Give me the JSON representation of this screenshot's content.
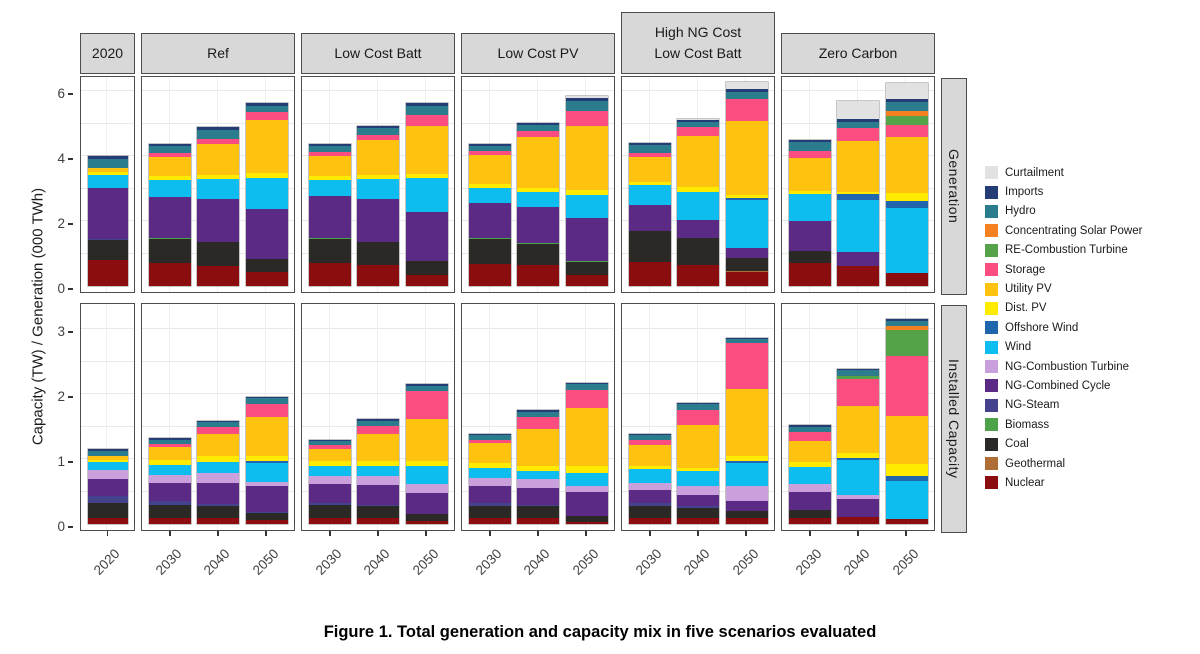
{
  "figure": {
    "caption": "Figure 1. Total generation and capacity mix in five scenarios evaluated"
  },
  "y_axis": {
    "label": "Capacity (TW) / Generation (000 TWh)",
    "top_ticks": [
      0,
      2,
      4,
      6
    ],
    "bottom_ticks": [
      0,
      1,
      2,
      3
    ]
  },
  "chart_data": {
    "type": "bar",
    "stacked": true,
    "facet_rows": [
      "Generation",
      "Installed Capacity"
    ],
    "units": {
      "Generation": "000 TWh",
      "Installed Capacity": "TW"
    },
    "y_domains": {
      "Generation": [
        0,
        6.5
      ],
      "Installed Capacity": [
        0,
        3.4
      ]
    },
    "gridline_step": {
      "Generation": 1,
      "Installed Capacity": 0.5
    },
    "facet_columns": [
      {
        "id": "y2020",
        "label": "2020",
        "years": [
          "2020"
        ]
      },
      {
        "id": "ref",
        "label": "Ref",
        "years": [
          "2030",
          "2040",
          "2050"
        ]
      },
      {
        "id": "lcb",
        "label": "Low Cost Batt",
        "years": [
          "2030",
          "2040",
          "2050"
        ]
      },
      {
        "id": "lcpv",
        "label": "Low Cost PV",
        "years": [
          "2030",
          "2040",
          "2050"
        ]
      },
      {
        "id": "hng",
        "label": "High NG Cost\nLow Cost Batt",
        "years": [
          "2030",
          "2040",
          "2050"
        ]
      },
      {
        "id": "zc",
        "label": "Zero Carbon",
        "years": [
          "2030",
          "2040",
          "2050"
        ]
      }
    ],
    "legend": [
      {
        "label": "Curtailment",
        "color": "#E2E2E2"
      },
      {
        "label": "Imports",
        "color": "#253D77"
      },
      {
        "label": "Hydro",
        "color": "#2B7D8D"
      },
      {
        "label": "Concentrating Solar Power",
        "color": "#F58020"
      },
      {
        "label": "RE-Combustion Turbine",
        "color": "#55A348"
      },
      {
        "label": "Storage",
        "color": "#FB4D7F"
      },
      {
        "label": "Utility PV",
        "color": "#FFC20E"
      },
      {
        "label": "Dist. PV",
        "color": "#FFEB00"
      },
      {
        "label": "Offshore Wind",
        "color": "#1F66AD"
      },
      {
        "label": "Wind",
        "color": "#0DBDF0"
      },
      {
        "label": "NG-Combustion Turbine",
        "color": "#C9A0DC"
      },
      {
        "label": "NG-Combined Cycle",
        "color": "#5B2A84"
      },
      {
        "label": "NG-Steam",
        "color": "#44418D"
      },
      {
        "label": "Biomass",
        "color": "#4DA24A"
      },
      {
        "label": "Coal",
        "color": "#2B2926"
      },
      {
        "label": "Geothermal",
        "color": "#AF6E33"
      },
      {
        "label": "Nuclear",
        "color": "#8B0D10"
      }
    ],
    "stack_order_bottom_to_top": [
      "Nuclear",
      "Geothermal",
      "Coal",
      "Biomass",
      "NG-Steam",
      "NG-Combined Cycle",
      "NG-Combustion Turbine",
      "Wind",
      "Offshore Wind",
      "Dist. PV",
      "Utility PV",
      "Storage",
      "RE-Combustion Turbine",
      "Concentrating Solar Power",
      "Hydro",
      "Imports",
      "Curtailment"
    ],
    "values": {
      "Generation": {
        "y2020": {
          "2020": {
            "Nuclear": 0.79,
            "Coal": 0.64,
            "NG-Steam": 0.03,
            "NG-Combined Cycle": 1.55,
            "Wind": 0.41,
            "Dist. PV": 0.1,
            "Utility PV": 0.1,
            "Hydro": 0.29,
            "Imports": 0.1
          }
        },
        "ref": {
          "2030": {
            "Nuclear": 0.72,
            "Coal": 0.72,
            "Biomass": 0.03,
            "NG-Combined Cycle": 1.28,
            "Wind": 0.52,
            "Dist. PV": 0.13,
            "Utility PV": 0.58,
            "Storage": 0.1,
            "Hydro": 0.22,
            "Imports": 0.07
          },
          "2040": {
            "Nuclear": 0.62,
            "Coal": 0.73,
            "Biomass": 0.02,
            "NG-Combined Cycle": 1.31,
            "Wind": 0.62,
            "Dist. PV": 0.13,
            "Utility PV": 0.95,
            "Storage": 0.15,
            "Hydro": 0.27,
            "Imports": 0.08
          },
          "2050": {
            "Nuclear": 0.43,
            "Coal": 0.39,
            "Biomass": 0.02,
            "NG-Combined Cycle": 1.53,
            "Wind": 0.96,
            "Dist. PV": 0.14,
            "Utility PV": 1.63,
            "Storage": 0.27,
            "Hydro": 0.17,
            "Imports": 0.08
          }
        },
        "lcb": {
          "2030": {
            "Nuclear": 0.7,
            "Coal": 0.76,
            "Biomass": 0.02,
            "NG-Combined Cycle": 1.29,
            "Wind": 0.48,
            "Dist. PV": 0.13,
            "Utility PV": 0.63,
            "Storage": 0.12,
            "Hydro": 0.17,
            "Imports": 0.06
          },
          "2040": {
            "Nuclear": 0.66,
            "Coal": 0.69,
            "Biomass": 0.02,
            "NG-Combined Cycle": 1.31,
            "Wind": 0.62,
            "Dist. PV": 0.13,
            "Utility PV": 1.06,
            "Storage": 0.17,
            "Hydro": 0.21,
            "Imports": 0.07
          },
          "2050": {
            "Nuclear": 0.35,
            "Coal": 0.41,
            "Biomass": 0.02,
            "NG-Combined Cycle": 1.51,
            "Wind": 1.04,
            "Dist. PV": 0.13,
            "Utility PV": 1.48,
            "Storage": 0.31,
            "Hydro": 0.28,
            "Imports": 0.09
          }
        },
        "lcpv": {
          "2030": {
            "Nuclear": 0.69,
            "Coal": 0.77,
            "Biomass": 0.02,
            "NG-Combined Cycle": 1.08,
            "Wind": 0.45,
            "Dist. PV": 0.12,
            "Utility PV": 0.9,
            "Storage": 0.12,
            "Hydro": 0.17,
            "Imports": 0.06
          },
          "2040": {
            "Nuclear": 0.66,
            "Coal": 0.64,
            "Biomass": 0.02,
            "NG-Combined Cycle": 1.12,
            "Wind": 0.46,
            "Dist. PV": 0.12,
            "Utility PV": 1.57,
            "Storage": 0.17,
            "Hydro": 0.19,
            "Imports": 0.07
          },
          "2050": {
            "Nuclear": 0.33,
            "Coal": 0.41,
            "Biomass": 0.02,
            "NG-Combined Cycle": 1.34,
            "Wind": 0.7,
            "Dist. PV": 0.15,
            "Utility PV": 1.97,
            "Storage": 0.46,
            "Hydro": 0.3,
            "Imports": 0.12,
            "Curtailment": 0.04
          }
        },
        "hng": {
          "2030": {
            "Nuclear": 0.73,
            "Coal": 0.95,
            "Biomass": 0.02,
            "NG-Combined Cycle": 0.79,
            "Wind": 0.62,
            "Dist. PV": 0.1,
            "Utility PV": 0.75,
            "Storage": 0.12,
            "Hydro": 0.26,
            "Imports": 0.07
          },
          "2040": {
            "Nuclear": 0.65,
            "Coal": 0.82,
            "Biomass": 0.02,
            "NG-Combined Cycle": 0.55,
            "Wind": 0.86,
            "Dist. PV": 0.14,
            "Utility PV": 1.58,
            "Storage": 0.27,
            "Hydro": 0.17,
            "Imports": 0.05,
            "Curtailment": 0.03
          },
          "2050": {
            "Nuclear": 0.44,
            "Geothermal": 0.02,
            "Coal": 0.4,
            "NG-Combined Cycle": 0.3,
            "Wind": 1.49,
            "Offshore Wind": 0.06,
            "Dist. PV": 0.08,
            "Utility PV": 2.3,
            "Storage": 0.68,
            "Hydro": 0.2,
            "Imports": 0.1,
            "Curtailment": 0.22
          }
        },
        "zc": {
          "2030": {
            "Nuclear": 0.72,
            "Coal": 0.35,
            "Biomass": 0.02,
            "NG-Combined Cycle": 0.92,
            "Wind": 0.81,
            "Dist. PV": 0.11,
            "Utility PV": 1.02,
            "Storage": 0.22,
            "Hydro": 0.26,
            "Imports": 0.07
          },
          "2040": {
            "Nuclear": 0.62,
            "NG-Combined Cycle": 0.44,
            "Wind": 1.6,
            "Offshore Wind": 0.16,
            "Dist. PV": 0.08,
            "Utility PV": 1.56,
            "Storage": 0.39,
            "Hydro": 0.2,
            "Imports": 0.09,
            "Curtailment": 0.55
          },
          "2050": {
            "Nuclear": 0.39,
            "Wind": 2.0,
            "Offshore Wind": 0.23,
            "Dist. PV": 0.25,
            "Utility PV": 1.71,
            "Storage": 0.38,
            "RE-Combustion Turbine": 0.26,
            "Concentrating Solar Power": 0.18,
            "Hydro": 0.25,
            "Imports": 0.1,
            "Curtailment": 0.5
          }
        }
      },
      "Installed Capacity": {
        "y2020": {
          "2020": {
            "Nuclear": 0.1,
            "Coal": 0.23,
            "NG-Steam": 0.1,
            "NG-Combined Cycle": 0.26,
            "NG-Combustion Turbine": 0.14,
            "Wind": 0.12,
            "Dist. PV": 0.04,
            "Utility PV": 0.05,
            "Storage": 0.01,
            "Hydro": 0.08,
            "Imports": 0.02
          }
        },
        "ref": {
          "2030": {
            "Nuclear": 0.1,
            "Coal": 0.2,
            "NG-Steam": 0.05,
            "NG-Combined Cycle": 0.28,
            "NG-Combustion Turbine": 0.13,
            "Wind": 0.15,
            "Dist. PV": 0.07,
            "Utility PV": 0.2,
            "Storage": 0.05,
            "Hydro": 0.07,
            "Imports": 0.02
          },
          "2040": {
            "Nuclear": 0.09,
            "Coal": 0.18,
            "NG-Steam": 0.04,
            "NG-Combined Cycle": 0.32,
            "NG-Combustion Turbine": 0.15,
            "Wind": 0.18,
            "Dist. PV": 0.08,
            "Utility PV": 0.35,
            "Storage": 0.1,
            "Hydro": 0.08,
            "Imports": 0.02
          },
          "2050": {
            "Nuclear": 0.06,
            "Coal": 0.11,
            "NG-Steam": 0.02,
            "NG-Combined Cycle": 0.39,
            "NG-Combustion Turbine": 0.06,
            "Wind": 0.3,
            "Offshore Wind": 0.03,
            "Dist. PV": 0.08,
            "Utility PV": 0.59,
            "Storage": 0.21,
            "Hydro": 0.09,
            "Imports": 0.02
          }
        },
        "lcb": {
          "2030": {
            "Nuclear": 0.1,
            "Coal": 0.19,
            "NG-Steam": 0.04,
            "NG-Combined Cycle": 0.29,
            "NG-Combustion Turbine": 0.12,
            "Wind": 0.15,
            "Dist. PV": 0.08,
            "Utility PV": 0.19,
            "Storage": 0.05,
            "Hydro": 0.07,
            "Imports": 0.02
          },
          "2040": {
            "Nuclear": 0.1,
            "Coal": 0.17,
            "NG-Steam": 0.03,
            "NG-Combined Cycle": 0.3,
            "NG-Combustion Turbine": 0.14,
            "Wind": 0.15,
            "Dist. PV": 0.08,
            "Utility PV": 0.41,
            "Storage": 0.13,
            "Hydro": 0.08,
            "Imports": 0.02
          },
          "2050": {
            "Nuclear": 0.04,
            "Coal": 0.11,
            "NG-Combined Cycle": 0.33,
            "NG-Combustion Turbine": 0.13,
            "Wind": 0.28,
            "Dist. PV": 0.08,
            "Utility PV": 0.64,
            "Storage": 0.44,
            "Hydro": 0.08,
            "Imports": 0.02
          }
        },
        "lcpv": {
          "2030": {
            "Nuclear": 0.1,
            "Coal": 0.18,
            "NG-Steam": 0.05,
            "NG-Combined Cycle": 0.25,
            "NG-Combustion Turbine": 0.13,
            "Wind": 0.15,
            "Dist. PV": 0.08,
            "Utility PV": 0.3,
            "Storage": 0.06,
            "Hydro": 0.07,
            "Imports": 0.02
          },
          "2040": {
            "Nuclear": 0.1,
            "Coal": 0.17,
            "NG-Steam": 0.03,
            "NG-Combined Cycle": 0.26,
            "NG-Combustion Turbine": 0.13,
            "Wind": 0.13,
            "Dist. PV": 0.08,
            "Utility PV": 0.57,
            "Storage": 0.18,
            "Hydro": 0.08,
            "Imports": 0.02
          },
          "2050": {
            "Nuclear": 0.03,
            "Coal": 0.1,
            "NG-Combined Cycle": 0.36,
            "NG-Combustion Turbine": 0.09,
            "Wind": 0.21,
            "Dist. PV": 0.1,
            "Utility PV": 0.9,
            "Storage": 0.28,
            "Hydro": 0.08,
            "Imports": 0.02
          }
        },
        "hng": {
          "2030": {
            "Nuclear": 0.1,
            "Coal": 0.18,
            "NG-Steam": 0.05,
            "NG-Combined Cycle": 0.19,
            "NG-Combustion Turbine": 0.11,
            "Wind": 0.21,
            "Dist. PV": 0.05,
            "Utility PV": 0.32,
            "Storage": 0.08,
            "Hydro": 0.08,
            "Imports": 0.02
          },
          "2040": {
            "Nuclear": 0.1,
            "Coal": 0.14,
            "NG-Steam": 0.03,
            "NG-Combined Cycle": 0.18,
            "NG-Combustion Turbine": 0.13,
            "Wind": 0.23,
            "Dist. PV": 0.06,
            "Utility PV": 0.66,
            "Storage": 0.23,
            "Hydro": 0.09,
            "Imports": 0.02
          },
          "2050": {
            "Nuclear": 0.09,
            "Coal": 0.11,
            "NG-Combined Cycle": 0.15,
            "NG-Combustion Turbine": 0.24,
            "Wind": 0.35,
            "Offshore Wind": 0.03,
            "Dist. PV": 0.08,
            "Utility PV": 1.03,
            "Storage": 0.7,
            "Hydro": 0.07,
            "Imports": 0.02
          }
        },
        "zc": {
          "2030": {
            "Nuclear": 0.1,
            "Coal": 0.12,
            "NG-Combined Cycle": 0.27,
            "NG-Combustion Turbine": 0.13,
            "Wind": 0.26,
            "Dist. PV": 0.07,
            "Utility PV": 0.33,
            "Storage": 0.14,
            "Hydro": 0.08,
            "Imports": 0.02
          },
          "2040": {
            "Nuclear": 0.11,
            "NG-Combined Cycle": 0.28,
            "NG-Combustion Turbine": 0.05,
            "Wind": 0.55,
            "Offshore Wind": 0.03,
            "Dist. PV": 0.07,
            "Utility PV": 0.73,
            "Storage": 0.41,
            "RE-Combustion Turbine": 0.05,
            "Hydro": 0.09,
            "Imports": 0.02
          },
          "2050": {
            "Nuclear": 0.08,
            "Wind": 0.58,
            "Offshore Wind": 0.08,
            "Dist. PV": 0.18,
            "Utility PV": 0.74,
            "Storage": 0.93,
            "RE-Combustion Turbine": 0.4,
            "Concentrating Solar Power": 0.06,
            "Hydro": 0.08,
            "Imports": 0.02
          }
        }
      }
    }
  }
}
